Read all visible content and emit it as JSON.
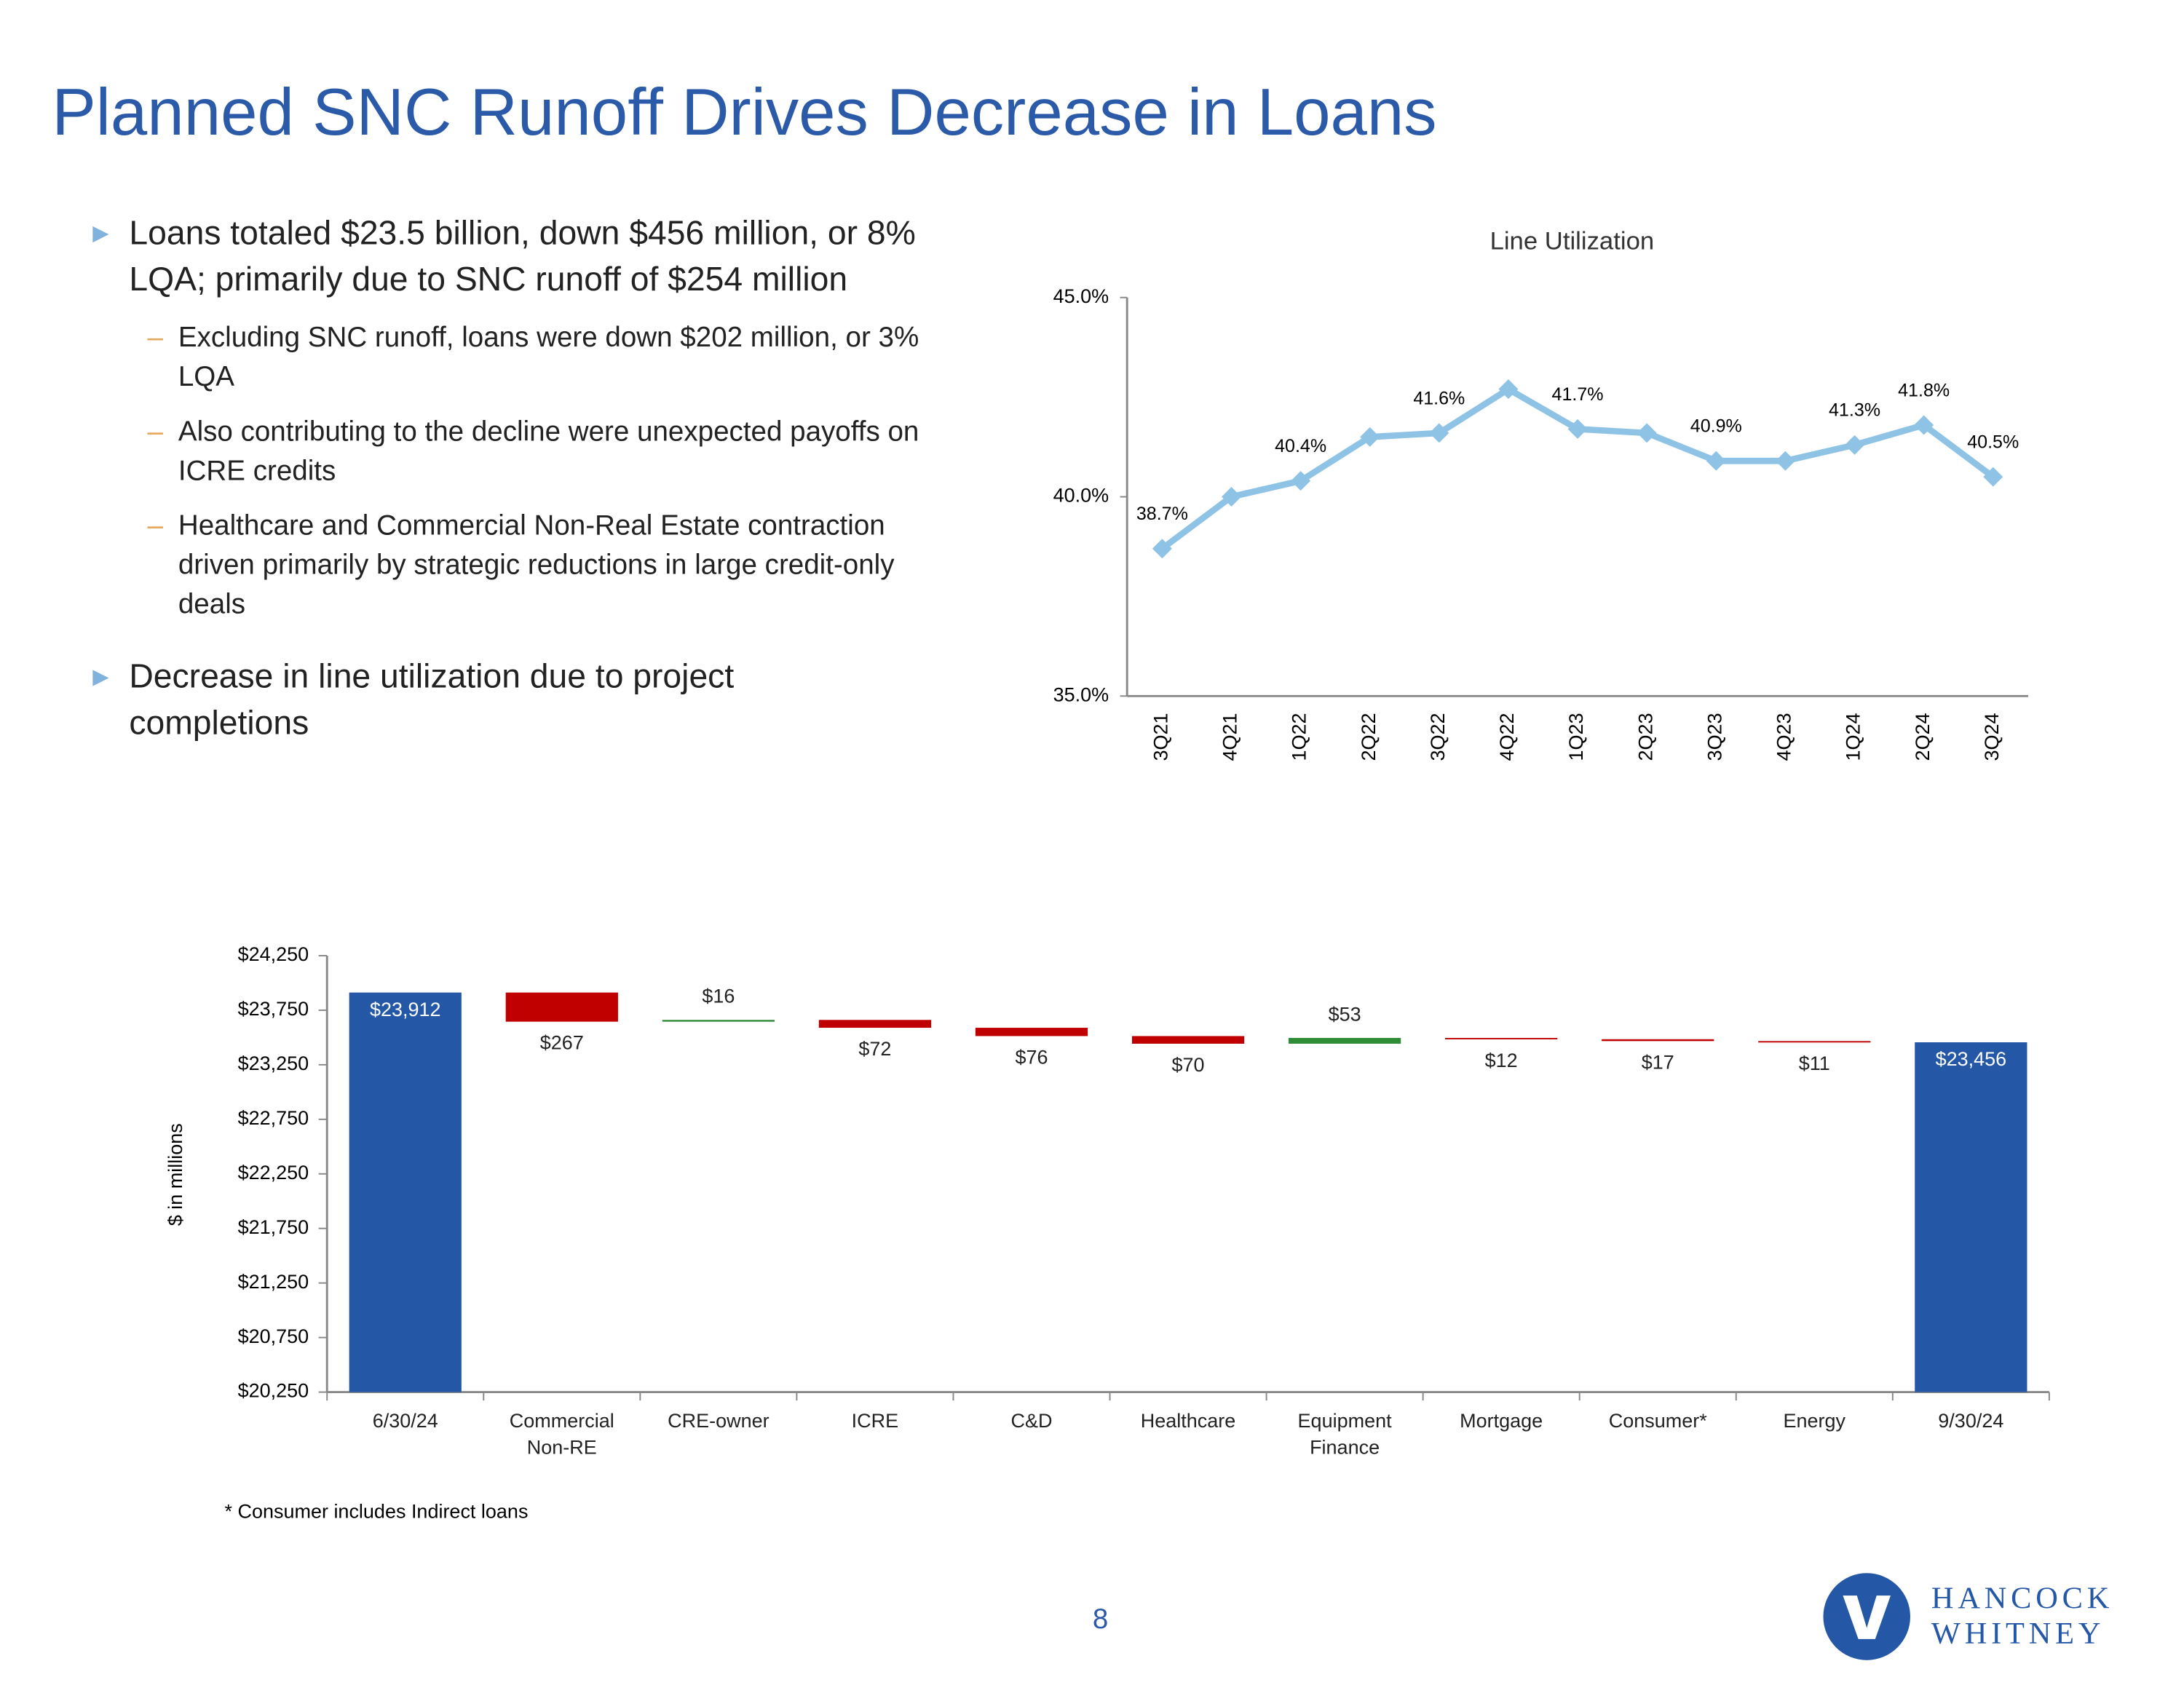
{
  "title": "Planned SNC Runoff Drives Decrease in Loans",
  "bullets": [
    {
      "text": "Loans totaled $23.5 billion, down $456 million, or 8% LQA; primarily due to SNC runoff of $254 million",
      "sub": [
        "Excluding SNC runoff, loans were down $202 million, or 3% LQA",
        "Also contributing to the decline were unexpected payoffs on ICRE credits",
        "Healthcare and Commercial Non-Real Estate contraction driven primarily by strategic reductions in large credit-only deals"
      ]
    },
    {
      "text": "Decrease in line utilization due to project completions",
      "sub": []
    }
  ],
  "chart_data": [
    {
      "type": "line",
      "title": "Line Utilization",
      "categories": [
        "3Q21",
        "4Q21",
        "1Q22",
        "2Q22",
        "3Q22",
        "4Q22",
        "1Q23",
        "2Q23",
        "3Q23",
        "4Q23",
        "1Q24",
        "2Q24",
        "3Q24"
      ],
      "values": [
        38.7,
        40.0,
        40.4,
        41.5,
        41.6,
        42.7,
        41.7,
        41.6,
        40.9,
        40.9,
        41.3,
        41.8,
        40.5
      ],
      "value_labels": [
        "38.7%",
        null,
        "40.4%",
        null,
        "41.6%",
        null,
        "41.7%",
        null,
        "40.9%",
        null,
        "41.3%",
        "41.8%",
        "40.5%"
      ],
      "color": "#8ec3e6",
      "ylim": [
        35,
        45
      ],
      "yticks": [
        {
          "value": 35,
          "label": "35.0%"
        },
        {
          "value": 40,
          "label": "40.0%"
        },
        {
          "value": 45,
          "label": "45.0%"
        }
      ]
    },
    {
      "type": "waterfall",
      "y_label": "$ in millions",
      "categories": [
        "6/30/24",
        "Commercial Non-RE",
        "CRE-owner",
        "ICRE",
        "C&D",
        "Healthcare",
        "Equipment Finance",
        "Mortgage",
        "Consumer*",
        "Energy",
        "9/30/24"
      ],
      "values": [
        23912,
        -267,
        16,
        -72,
        -76,
        -70,
        53,
        -12,
        -17,
        -11,
        23456
      ],
      "value_labels": [
        "$23,912",
        "$267",
        "$16",
        "$72",
        "$76",
        "$70",
        "$53",
        "$12",
        "$17",
        "$11",
        "$23,456"
      ],
      "colors": {
        "total": "#2458a6",
        "increase": "#2e8b36",
        "decrease": "#c00000"
      },
      "ylim": [
        20250,
        24250
      ],
      "yticks": [
        {
          "value": 20250,
          "label": "$20,250"
        },
        {
          "value": 20750,
          "label": "$20,750"
        },
        {
          "value": 21250,
          "label": "$21,250"
        },
        {
          "value": 21750,
          "label": "$21,750"
        },
        {
          "value": 22250,
          "label": "$22,250"
        },
        {
          "value": 22750,
          "label": "$22,750"
        },
        {
          "value": 23250,
          "label": "$23,250"
        },
        {
          "value": 23750,
          "label": "$23,750"
        },
        {
          "value": 24250,
          "label": "$24,250"
        }
      ],
      "footnote": "* Consumer includes Indirect loans"
    }
  ],
  "page_number": "8",
  "logo": {
    "line1": "HANCOCK",
    "line2": "WHITNEY"
  }
}
